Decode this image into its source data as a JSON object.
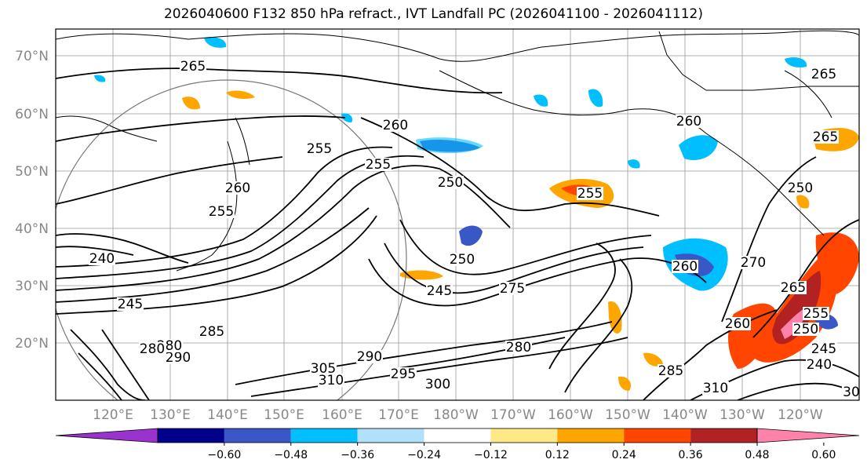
{
  "title": "2026040600 F132 850 hPa refract., IVT Landfall PC (2026041100 - 2026041112)",
  "lat_labels": [
    "70°N",
    "60°N",
    "50°N",
    "40°N",
    "30°N",
    "20°N"
  ],
  "lon_labels": [
    "120°E",
    "130°E",
    "140°E",
    "150°E",
    "160°E",
    "170°E",
    "180°W",
    "170°W",
    "160°W",
    "150°W",
    "140°W",
    "130°W",
    "120°W"
  ],
  "contour_labels": [
    "265",
    "260",
    "255",
    "255",
    "250",
    "260",
    "255",
    "245",
    "250",
    "245",
    "275",
    "280",
    "255",
    "260",
    "270",
    "265",
    "265",
    "255",
    "250",
    "245",
    "240",
    "285",
    "290",
    "305",
    "310",
    "295",
    "300",
    "290",
    "280",
    "285",
    "260",
    "265",
    "310",
    "280",
    "240",
    "30",
    "260",
    "250"
  ],
  "colorbar": {
    "ticks": [
      "−0.60",
      "−0.48",
      "−0.36",
      "−0.24",
      "−0.12",
      "0.12",
      "0.24",
      "0.36",
      "0.48",
      "0.60"
    ],
    "colors": [
      "#9a32cd",
      "#00008b",
      "#3a57c8",
      "#00bfff",
      "#b0e0fa",
      "#ffffff",
      "#ffe886",
      "#ffa500",
      "#ff4500",
      "#b22222",
      "#ff82ab"
    ]
  }
}
